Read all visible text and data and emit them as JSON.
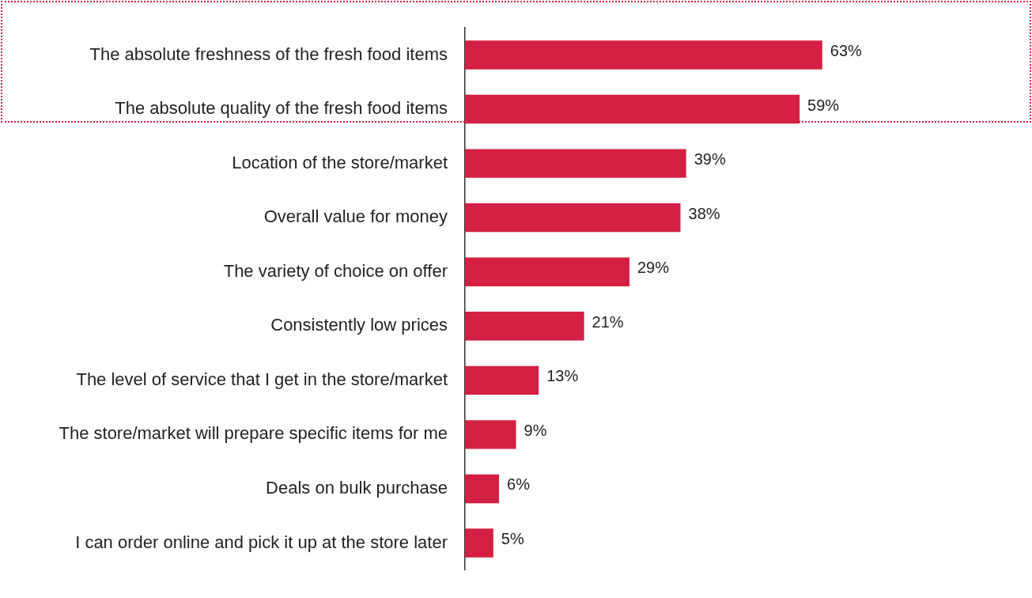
{
  "chart_data": {
    "type": "bar",
    "orientation": "horizontal",
    "categories": [
      "The absolute freshness of the fresh food items",
      "The absolute quality of the fresh food items",
      "Location of the store/market",
      "Overall value for money",
      "The variety of choice on offer",
      "Consistently low prices",
      "The level of service that I get in the store/market",
      "The store/market will prepare specific items for me",
      "Deals on bulk purchase",
      "I can order online and pick it up at the store later"
    ],
    "values": [
      63,
      59,
      39,
      38,
      29,
      21,
      13,
      9,
      6,
      5
    ],
    "value_labels": [
      "63%",
      "59%",
      "39%",
      "38%",
      "29%",
      "21%",
      "13%",
      "9%",
      "6%",
      "5%"
    ],
    "color": "#d42043",
    "tick_labels": "y"
  }
}
